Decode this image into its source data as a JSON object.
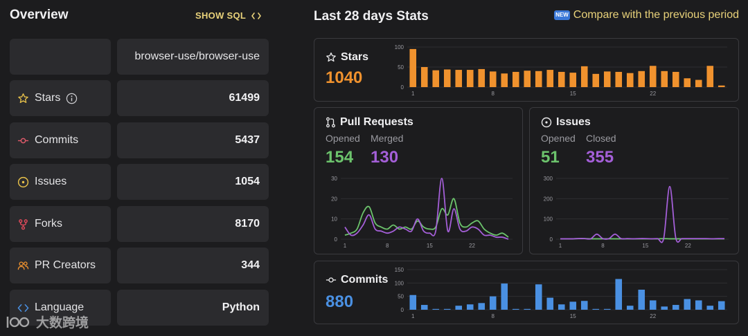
{
  "overview": {
    "title": "Overview",
    "show_sql": "SHOW SQL",
    "repo": "browser-use/browser-use",
    "rows": [
      {
        "label": "Stars",
        "value": "61499",
        "icon": "star-icon"
      },
      {
        "label": "Commits",
        "value": "5437",
        "icon": "commit-icon"
      },
      {
        "label": "Issues",
        "value": "1054",
        "icon": "issue-icon"
      },
      {
        "label": "Forks",
        "value": "8170",
        "icon": "fork-icon"
      },
      {
        "label": "PR Creators",
        "value": "344",
        "icon": "people-icon"
      },
      {
        "label": "Language",
        "value": "Python",
        "icon": "code-icon"
      }
    ]
  },
  "stats": {
    "title": "Last 28 days Stats",
    "compare": "Compare with the previous period",
    "new_badge": "NEW",
    "stars": {
      "title": "Stars",
      "total": "1040"
    },
    "prs": {
      "title": "Pull Requests",
      "opened_label": "Opened",
      "merged_label": "Merged",
      "opened": "154",
      "merged": "130"
    },
    "issues": {
      "title": "Issues",
      "opened_label": "Opened",
      "closed_label": "Closed",
      "opened": "51",
      "closed": "355"
    },
    "commits": {
      "title": "Commits",
      "total": "880"
    }
  },
  "watermark": "大数跨境",
  "colors": {
    "stars": "#f0922e",
    "opened": "#6cc36c",
    "merged": "#a45fd8",
    "commits": "#4a90e2",
    "accent": "#e9d27a"
  },
  "chart_data": [
    {
      "type": "bar",
      "name": "stars",
      "title": "Stars",
      "x": [
        1,
        2,
        3,
        4,
        5,
        6,
        7,
        8,
        9,
        10,
        11,
        12,
        13,
        14,
        15,
        16,
        17,
        18,
        19,
        20,
        21,
        22,
        23,
        24,
        25,
        26,
        27,
        28
      ],
      "values": [
        95,
        50,
        42,
        44,
        43,
        43,
        45,
        39,
        34,
        38,
        41,
        40,
        43,
        38,
        36,
        52,
        33,
        39,
        38,
        35,
        40,
        53,
        40,
        38,
        22,
        18,
        53,
        4
      ],
      "ylim": [
        0,
        100
      ],
      "yticks": [
        0,
        50,
        100
      ],
      "xticks": [
        1,
        8,
        15,
        22
      ]
    },
    {
      "type": "line",
      "name": "pull_requests",
      "title": "Pull Requests",
      "x": [
        1,
        2,
        3,
        4,
        5,
        6,
        7,
        8,
        9,
        10,
        11,
        12,
        13,
        14,
        15,
        16,
        17,
        18,
        19,
        20,
        21,
        22,
        23,
        24,
        25,
        26,
        27,
        28
      ],
      "series": [
        {
          "name": "Opened",
          "values": [
            2,
            3,
            5,
            13,
            16,
            8,
            6,
            5,
            7,
            5,
            6,
            5,
            9,
            6,
            5,
            6,
            15,
            12,
            20,
            8,
            6,
            8,
            9,
            5,
            3,
            2,
            3,
            1
          ]
        },
        {
          "name": "Merged",
          "values": [
            6,
            2,
            3,
            7,
            12,
            5,
            4,
            3,
            4,
            6,
            5,
            4,
            10,
            4,
            3,
            4,
            30,
            4,
            15,
            5,
            4,
            6,
            5,
            2,
            2,
            1,
            1,
            0
          ]
        }
      ],
      "ylim": [
        0,
        30
      ],
      "yticks": [
        0,
        10,
        20,
        30
      ],
      "xticks": [
        1,
        8,
        15,
        22
      ]
    },
    {
      "type": "line",
      "name": "issues",
      "title": "Issues",
      "x": [
        1,
        2,
        3,
        4,
        5,
        6,
        7,
        8,
        9,
        10,
        11,
        12,
        13,
        14,
        15,
        16,
        17,
        18,
        19,
        20,
        21,
        22,
        23,
        24,
        25,
        26,
        27,
        28
      ],
      "series": [
        {
          "name": "Opened",
          "values": [
            2,
            2,
            2,
            3,
            3,
            2,
            2,
            2,
            2,
            2,
            2,
            2,
            2,
            2,
            2,
            2,
            2,
            3,
            2,
            2,
            2,
            2,
            2,
            2,
            2,
            2,
            2,
            2
          ]
        },
        {
          "name": "Closed",
          "values": [
            2,
            2,
            2,
            3,
            3,
            2,
            25,
            3,
            3,
            25,
            3,
            3,
            2,
            3,
            3,
            2,
            3,
            3,
            260,
            5,
            3,
            3,
            3,
            3,
            3,
            2,
            3,
            3
          ]
        }
      ],
      "ylim": [
        0,
        300
      ],
      "yticks": [
        0,
        100,
        200,
        300
      ],
      "xticks": [
        1,
        8,
        15,
        22
      ]
    },
    {
      "type": "bar",
      "name": "commits",
      "title": "Commits",
      "x": [
        1,
        2,
        3,
        4,
        5,
        6,
        7,
        8,
        9,
        10,
        11,
        12,
        13,
        14,
        15,
        16,
        17,
        18,
        19,
        20,
        21,
        22,
        23,
        24,
        25,
        26,
        27,
        28
      ],
      "values": [
        55,
        18,
        3,
        3,
        15,
        20,
        25,
        50,
        98,
        3,
        3,
        95,
        45,
        20,
        30,
        33,
        3,
        3,
        115,
        15,
        75,
        35,
        12,
        18,
        40,
        35,
        15,
        32
      ],
      "ylim": [
        0,
        150
      ],
      "yticks": [
        0,
        50,
        100,
        150
      ],
      "xticks": [
        1,
        8,
        15,
        22
      ]
    }
  ]
}
